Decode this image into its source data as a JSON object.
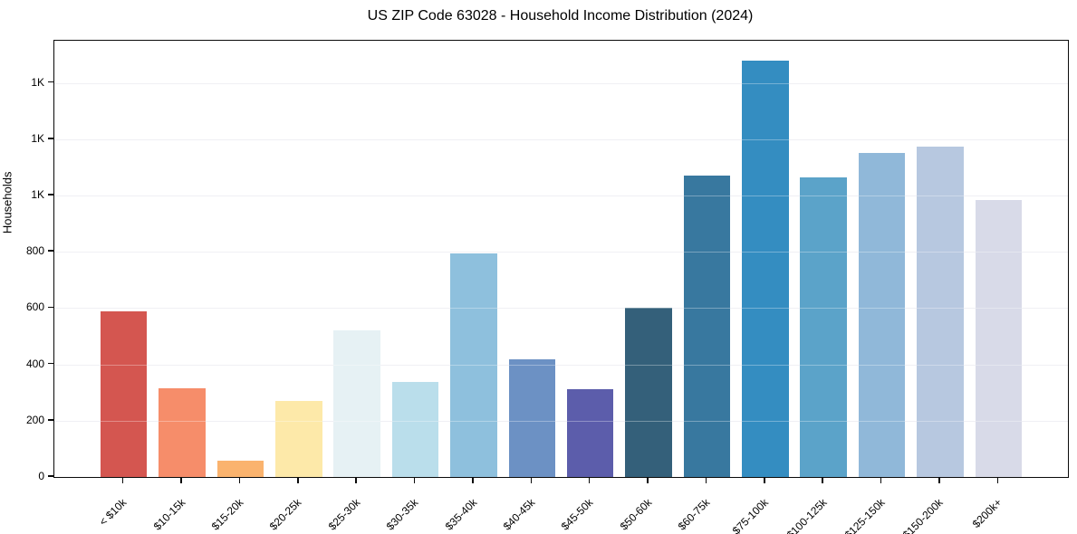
{
  "page": {
    "title": "US ZIP Code 63028 - Household Income Distribution (2024)"
  },
  "chart_data": {
    "type": "bar",
    "title": "US ZIP Code 63028 - Household Income Distribution (2024)",
    "xlabel": "",
    "ylabel": "Households",
    "categories": [
      "< $10k",
      "$10-15k",
      "$15-20k",
      "$20-25k",
      "$25-30k",
      "$30-35k",
      "$35-40k",
      "$40-45k",
      "$45-50k",
      "$50-60k",
      "$60-75k",
      "$75-100k",
      "$100-125k",
      "$125-150k",
      "$150-200k",
      "$200k+"
    ],
    "values": [
      588,
      315,
      58,
      271,
      520,
      338,
      795,
      419,
      313,
      600,
      1070,
      1480,
      1065,
      1150,
      1175,
      985
    ],
    "bar_colors": [
      "#d45650",
      "#f68d6a",
      "#fab36e",
      "#fde9a9",
      "#e6f1f4",
      "#badeeb",
      "#8ec0dd",
      "#6c91c4",
      "#5c5dab",
      "#34607a",
      "#38789f",
      "#348dc1",
      "#5ba3c9",
      "#90b8d9",
      "#b7c8e0",
      "#d8dae8"
    ],
    "ylim": [
      0,
      1550
    ],
    "yticks": [
      {
        "value": 0,
        "label": "0"
      },
      {
        "value": 200,
        "label": "200"
      },
      {
        "value": 400,
        "label": "400"
      },
      {
        "value": 600,
        "label": "600"
      },
      {
        "value": 800,
        "label": "800"
      },
      {
        "value": 1000,
        "label": "1K"
      },
      {
        "value": 1200,
        "label": "1K"
      },
      {
        "value": 1400,
        "label": "1K"
      }
    ],
    "grid": "horizontal",
    "legend_position": "none",
    "colors": {
      "background": "#ffffff",
      "gridline": "#e9e9ef",
      "spine": "#0a0a0a",
      "text": "#000000"
    }
  }
}
